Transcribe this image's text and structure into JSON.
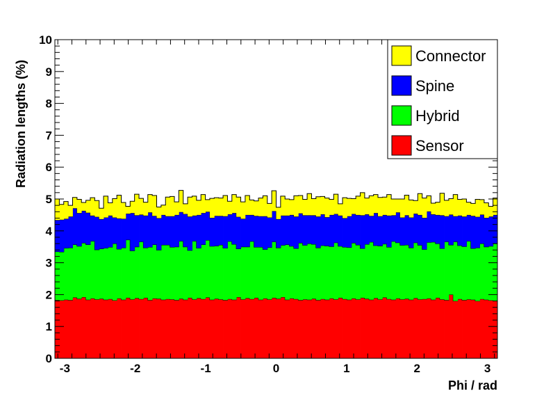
{
  "chart_data": {
    "type": "area",
    "stacked": true,
    "title": "",
    "xlabel": "Phi / rad",
    "ylabel": "Radiation lengths (%)",
    "xlim": [
      -3.1416,
      3.1416
    ],
    "ylim": [
      0,
      10
    ],
    "xticks": [
      "-3",
      "-2",
      "-1",
      "0",
      "1",
      "2",
      "3"
    ],
    "xtick_values": [
      -3,
      -2,
      -1,
      0,
      1,
      2,
      3
    ],
    "yticks": [
      "0",
      "1",
      "2",
      "3",
      "4",
      "5",
      "6",
      "7",
      "8",
      "9",
      "10"
    ],
    "grid": false,
    "legend_position": "top-right",
    "bins": 100,
    "series": [
      {
        "name": "Sensor",
        "color": "#ff0000",
        "values": [
          1.83,
          1.82,
          1.84,
          1.83,
          1.91,
          1.87,
          1.92,
          1.84,
          1.88,
          1.85,
          1.87,
          1.84,
          1.86,
          1.82,
          1.88,
          1.84,
          1.9,
          1.85,
          1.89,
          1.86,
          1.9,
          1.83,
          1.88,
          1.87,
          1.84,
          1.86,
          1.85,
          1.83,
          1.87,
          1.84,
          1.9,
          1.85,
          1.89,
          1.86,
          1.91,
          1.84,
          1.87,
          1.85,
          1.83,
          1.86,
          1.84,
          1.92,
          1.85,
          1.89,
          1.86,
          1.9,
          1.84,
          1.88,
          1.85,
          1.9,
          1.87,
          1.92,
          1.84,
          1.88,
          1.86,
          1.83,
          1.85,
          1.84,
          1.87,
          1.83,
          1.86,
          1.84,
          1.88,
          1.85,
          1.9,
          1.86,
          1.84,
          1.88,
          1.85,
          1.9,
          1.87,
          1.84,
          1.89,
          1.85,
          1.91,
          1.86,
          1.84,
          1.88,
          1.85,
          1.87,
          1.84,
          1.89,
          1.85,
          1.86,
          1.88,
          1.84,
          1.9,
          1.85,
          1.83,
          2.0,
          1.8,
          1.86,
          1.83,
          1.85,
          1.84,
          1.8,
          1.86,
          1.84,
          1.82,
          1.81
        ]
      },
      {
        "name": "Hybrid",
        "color": "#00ff00",
        "values": [
          1.52,
          1.52,
          1.62,
          1.64,
          1.66,
          1.65,
          1.7,
          1.73,
          1.8,
          1.56,
          1.57,
          1.62,
          1.63,
          1.78,
          1.55,
          1.63,
          1.82,
          1.53,
          1.61,
          1.8,
          1.57,
          1.66,
          1.69,
          1.53,
          1.72,
          1.7,
          1.64,
          1.67,
          1.81,
          1.66,
          1.49,
          1.83,
          1.57,
          1.71,
          1.8,
          1.68,
          1.66,
          1.71,
          1.63,
          1.81,
          1.74,
          1.52,
          1.65,
          1.61,
          1.81,
          1.59,
          1.65,
          1.54,
          1.63,
          1.76,
          1.6,
          1.63,
          1.73,
          1.64,
          1.59,
          1.79,
          1.7,
          1.76,
          1.71,
          1.64,
          1.68,
          1.69,
          1.63,
          1.78,
          1.62,
          1.63,
          1.64,
          1.74,
          1.71,
          1.55,
          1.71,
          1.81,
          1.65,
          1.68,
          1.68,
          1.63,
          1.83,
          1.75,
          1.7,
          1.69,
          1.63,
          1.74,
          1.7,
          1.56,
          1.76,
          1.81,
          1.7,
          1.6,
          1.83,
          1.56,
          1.86,
          1.68,
          1.68,
          1.83,
          1.61,
          1.67,
          1.74,
          1.66,
          1.7,
          1.79
        ]
      },
      {
        "name": "Spine",
        "color": "#0000ff",
        "values": [
          0.99,
          1.01,
          0.92,
          0.98,
          1.14,
          1.04,
          1.01,
          1.0,
          0.8,
          1.03,
          0.93,
          0.96,
          0.99,
          0.82,
          0.96,
          0.91,
          0.82,
          1.18,
          0.99,
          0.85,
          1.01,
          1.09,
          0.9,
          1.0,
          0.94,
          0.9,
          0.97,
          1.0,
          0.91,
          1.03,
          1.06,
          0.8,
          1.04,
          0.99,
          0.89,
          0.89,
          0.94,
          0.91,
          1.0,
          0.85,
          0.98,
          1.0,
          0.88,
          1.0,
          0.83,
          0.98,
          0.97,
          1.04,
          0.94,
          0.96,
          0.9,
          0.93,
          0.91,
          0.98,
          1.0,
          0.93,
          0.94,
          0.89,
          0.91,
          0.98,
          0.98,
          0.9,
          0.99,
          0.9,
          0.96,
          0.91,
          0.98,
          0.91,
          0.94,
          1.04,
          0.94,
          0.82,
          1.02,
          0.93,
          0.91,
          0.99,
          0.82,
          0.95,
          0.87,
          0.93,
          0.95,
          0.91,
          0.95,
          0.99,
          0.97,
          0.87,
          0.9,
          1.04,
          0.8,
          0.95,
          0.8,
          0.94,
          0.94,
          0.82,
          1.02,
          0.97,
          0.91,
          0.91,
          0.93,
          0.9
        ]
      },
      {
        "name": "Connector",
        "color": "#ffff00",
        "values": [
          0.66,
          0.48,
          0.54,
          0.35,
          0.34,
          0.43,
          0.26,
          0.39,
          0.56,
          0.51,
          0.34,
          0.67,
          0.4,
          0.59,
          0.73,
          0.51,
          0.23,
          0.37,
          0.66,
          0.51,
          0.42,
          0.56,
          0.64,
          0.35,
          0.31,
          0.6,
          0.62,
          0.41,
          0.68,
          0.32,
          0.61,
          0.61,
          0.46,
          0.58,
          0.38,
          0.61,
          0.57,
          0.56,
          0.65,
          0.41,
          0.58,
          0.62,
          0.53,
          0.61,
          0.47,
          0.47,
          0.57,
          0.64,
          0.44,
          0.64,
          0.37,
          0.61,
          0.52,
          0.48,
          0.65,
          0.56,
          0.5,
          0.68,
          0.52,
          0.62,
          0.56,
          0.6,
          0.49,
          0.62,
          0.37,
          0.64,
          0.56,
          0.48,
          0.59,
          0.71,
          0.51,
          0.63,
          0.58,
          0.59,
          0.56,
          0.66,
          0.51,
          0.42,
          0.58,
          0.63,
          0.55,
          0.41,
          0.67,
          0.62,
          0.49,
          0.35,
          0.4,
          0.69,
          0.5,
          0.5,
          0.68,
          0.51,
          0.55,
          0.4,
          0.39,
          0.55,
          0.47,
          0.47,
          0.32,
          0.53
        ]
      }
    ],
    "legend_order": [
      "Connector",
      "Spine",
      "Hybrid",
      "Sensor"
    ]
  }
}
